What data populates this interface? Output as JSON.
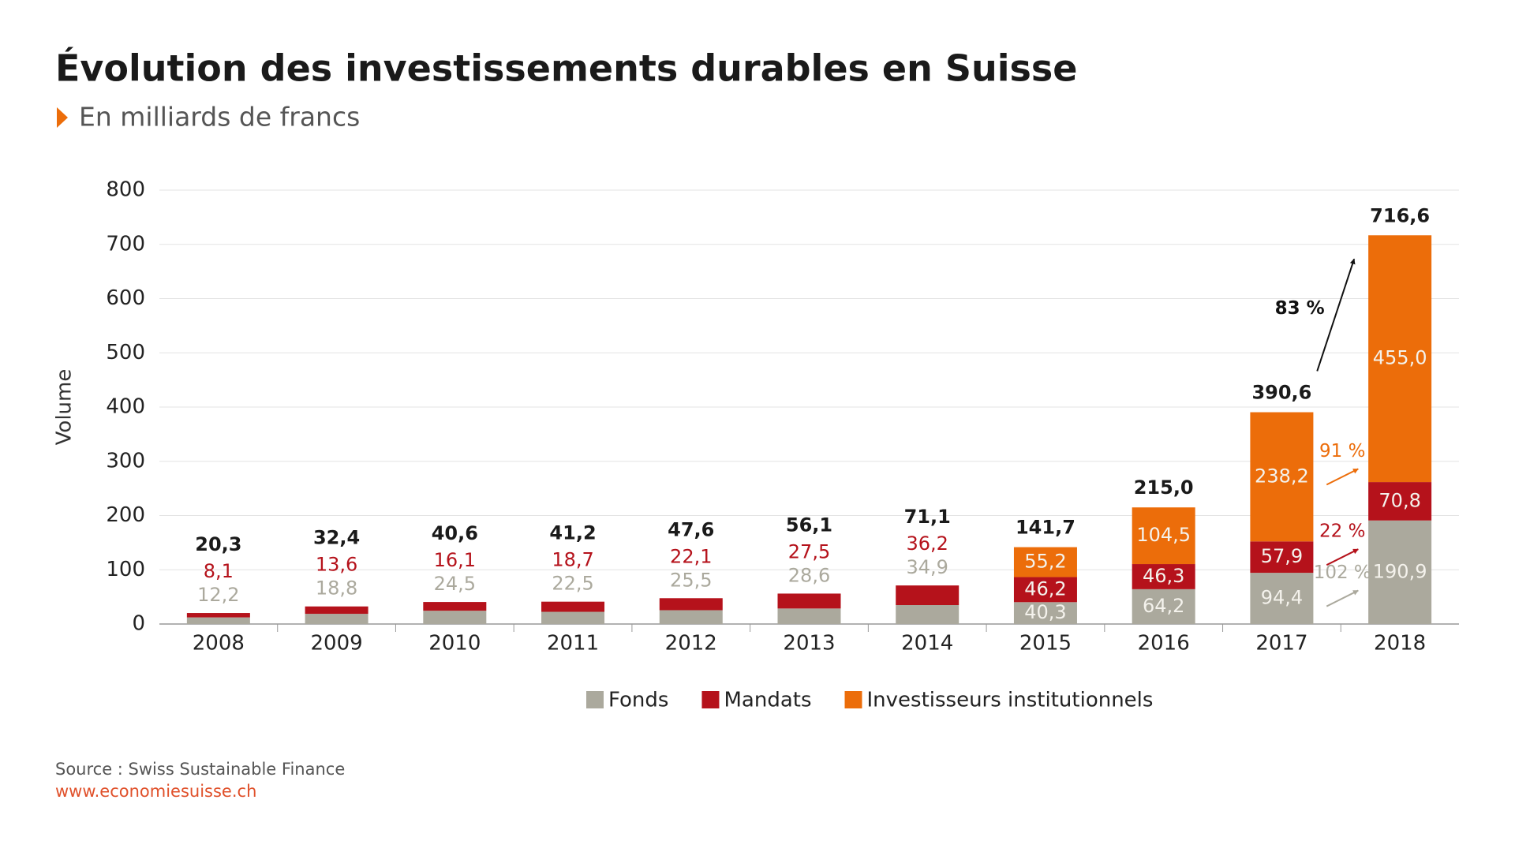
{
  "chart_data": {
    "type": "stacked_bar",
    "title": "Évolution des investissements durables en Suisse",
    "subtitle": "En milliards de francs",
    "y_label": "Volume",
    "categories": [
      "2008",
      "2009",
      "2010",
      "2011",
      "2012",
      "2013",
      "2014",
      "2015",
      "2016",
      "2017",
      "2018"
    ],
    "series": [
      {
        "name": "Fonds",
        "color": "#aba99d",
        "values": [
          12.2,
          18.8,
          24.5,
          22.5,
          25.5,
          28.6,
          34.9,
          40.3,
          64.2,
          94.4,
          190.9
        ],
        "value_labels": [
          "12,2",
          "18,8",
          "24,5",
          "22,5",
          "25,5",
          "28,6",
          "34,9",
          "40,3",
          "64,2",
          "94,4",
          "190,9"
        ]
      },
      {
        "name": "Mandats",
        "color": "#b5121b",
        "values": [
          8.1,
          13.6,
          16.1,
          18.7,
          22.1,
          27.5,
          36.2,
          46.2,
          46.3,
          57.9,
          70.8
        ],
        "value_labels": [
          "8,1",
          "13,6",
          "16,1",
          "18,7",
          "22,1",
          "27,5",
          "36,2",
          "46,2",
          "46,3",
          "57,9",
          "70,8"
        ]
      },
      {
        "name": "Investisseurs institutionnels",
        "color": "#ec6d0a",
        "values": [
          null,
          null,
          null,
          null,
          null,
          null,
          null,
          55.2,
          104.5,
          238.2,
          455.0
        ],
        "value_labels": [
          null,
          null,
          null,
          null,
          null,
          null,
          null,
          "55,2",
          "104,5",
          "238,2",
          "455,0"
        ]
      }
    ],
    "totals": [
      20.3,
      32.4,
      40.6,
      41.2,
      47.6,
      56.1,
      71.1,
      141.7,
      215.0,
      390.6,
      716.6
    ],
    "total_labels": [
      "20,3",
      "32,4",
      "40,6",
      "41,2",
      "47,6",
      "56,1",
      "71,1",
      "141,7",
      "215,0",
      "390,6",
      "716,6"
    ],
    "annotations": [
      {
        "value": 102,
        "label": "102 %",
        "color": "#aba99d"
      },
      {
        "value": 22,
        "label": "22 %",
        "color": "#b5121b"
      },
      {
        "value": 91,
        "label": "91 %",
        "color": "#ec6d0a"
      },
      {
        "value": 83,
        "label": "83 %",
        "color": "#111111"
      }
    ],
    "ylim": [
      0,
      800
    ],
    "yticks": [
      0,
      100,
      200,
      300,
      400,
      500,
      600,
      700,
      800
    ],
    "grid": true,
    "source": "Source : Swiss Sustainable Finance",
    "url": "www.economiesuisse.ch"
  }
}
